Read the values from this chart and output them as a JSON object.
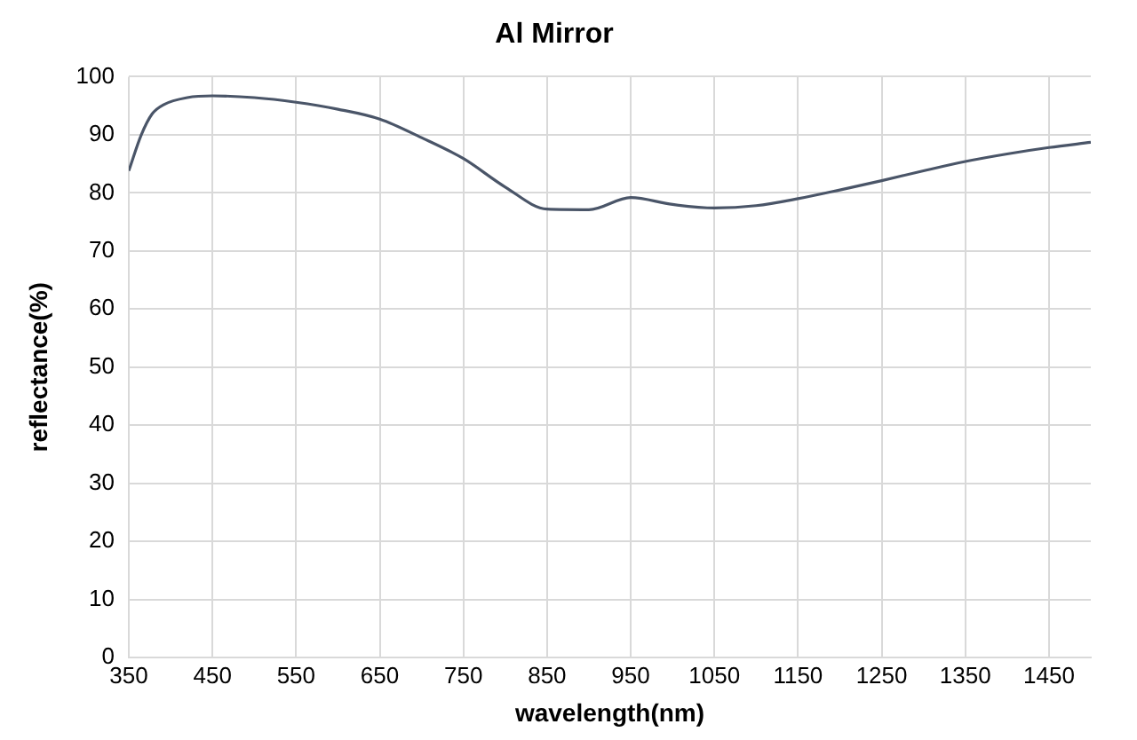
{
  "chart_data": {
    "type": "line",
    "title": "Al Mirror",
    "xlabel": "wavelength(nm)",
    "ylabel": "reflectance(%)",
    "x": [
      350,
      365,
      378,
      392,
      420,
      450,
      500,
      550,
      600,
      650,
      700,
      750,
      800,
      850,
      900,
      950,
      1000,
      1050,
      1100,
      1150,
      1200,
      1250,
      1300,
      1350,
      1400,
      1450,
      1500
    ],
    "series": [
      {
        "color": "#4a5568",
        "values": [
          83.8,
          90,
          93.6,
          95.2,
          96.4,
          96.7,
          96.4,
          95.6,
          94.4,
          92.7,
          89.5,
          85.9,
          81,
          77.2,
          77.1,
          79.2,
          78,
          77.4,
          77.8,
          79,
          80.5,
          82.1,
          83.8,
          85.4,
          86.7,
          87.8,
          88.7
        ]
      }
    ],
    "xlim": [
      350,
      1500
    ],
    "xticks": [
      350,
      450,
      550,
      650,
      750,
      850,
      950,
      1050,
      1150,
      1250,
      1350,
      1450
    ],
    "ylim": [
      0,
      100
    ],
    "yticks": [
      0,
      10,
      20,
      30,
      40,
      50,
      60,
      70,
      80,
      90,
      100
    ],
    "grid": true,
    "legend": false,
    "marker": "none",
    "line_style": "solid"
  }
}
